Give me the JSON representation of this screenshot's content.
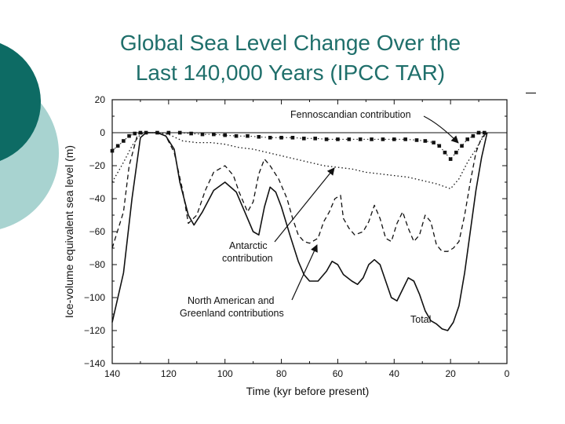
{
  "slide": {
    "title_line1": "Global Sea Level Change Over the",
    "title_line2": "Last 140,000 Years (IPCC TAR)",
    "colors": {
      "title": "#1f6f6b",
      "circle_dark": "#0d6b64",
      "circle_light": "#a8d3d0"
    }
  },
  "chart_data": {
    "type": "line",
    "xlabel": "Time (kyr before present)",
    "ylabel": "Ice-volume equivalent sea level (m)",
    "xlim": [
      140,
      0
    ],
    "ylim": [
      -140,
      20
    ],
    "x_ticks": [
      "140",
      "120",
      "100",
      "80",
      "60",
      "40",
      "20",
      "0"
    ],
    "y_ticks": [
      "20",
      "0",
      "−20",
      "−40",
      "−60",
      "−80",
      "−100",
      "−120",
      "−140"
    ],
    "annotations": {
      "fennoscandian": "Fennoscandian  contribution",
      "antarctic_1": "Antarctic",
      "antarctic_2": "contribution",
      "na_1": "North  American and",
      "na_2": "Greenland  contributions",
      "total": "Total"
    },
    "series": [
      {
        "style": "solid",
        "x": [
          140,
          136,
          133,
          130,
          128,
          124,
          121,
          118,
          116,
          113,
          111,
          108,
          104,
          100,
          96,
          93,
          90,
          88,
          86,
          84,
          82,
          80,
          77,
          74,
          72,
          70,
          67,
          64,
          62,
          60,
          58,
          55,
          53,
          51,
          49,
          47,
          45,
          43,
          41,
          39,
          37,
          35,
          33,
          31,
          29,
          27,
          25,
          23,
          21,
          19,
          17,
          15,
          13,
          11,
          9,
          7
        ],
        "y": [
          -115,
          -85,
          -40,
          -3,
          0,
          0,
          -2,
          -10,
          -30,
          -50,
          -56,
          -48,
          -35,
          -30,
          -36,
          -48,
          -60,
          -62,
          -45,
          -33,
          -36,
          -45,
          -62,
          -78,
          -86,
          -90,
          -90,
          -84,
          -78,
          -80,
          -86,
          -90,
          -92,
          -88,
          -80,
          -77,
          -80,
          -90,
          -100,
          -102,
          -95,
          -88,
          -90,
          -98,
          -108,
          -114,
          -116,
          -119,
          -120,
          -115,
          -105,
          -85,
          -60,
          -35,
          -15,
          0
        ]
      },
      {
        "style": "dashed",
        "x": [
          140,
          136,
          134,
          131,
          128,
          124,
          121,
          118,
          115,
          113,
          110,
          107,
          104,
          100,
          97,
          95,
          92,
          90,
          88,
          86,
          84,
          81,
          78,
          76,
          74,
          72,
          70,
          67,
          65,
          63,
          61,
          59,
          58,
          56,
          54,
          51,
          49,
          47,
          45,
          43,
          41,
          39,
          37,
          35,
          33,
          31,
          29,
          27,
          25,
          23,
          21,
          19,
          17,
          15,
          13,
          11,
          9,
          7
        ],
        "y": [
          -70,
          -48,
          -20,
          -1,
          0,
          0,
          -2,
          -12,
          -35,
          -55,
          -50,
          -35,
          -24,
          -20,
          -26,
          -36,
          -48,
          -42,
          -25,
          -16,
          -20,
          -28,
          -40,
          -52,
          -62,
          -66,
          -67,
          -64,
          -54,
          -48,
          -40,
          -38,
          -52,
          -58,
          -62,
          -60,
          -54,
          -44,
          -52,
          -64,
          -66,
          -55,
          -48,
          -58,
          -66,
          -62,
          -50,
          -54,
          -68,
          -72,
          -72,
          -70,
          -66,
          -50,
          -30,
          -12,
          -3,
          0
        ]
      },
      {
        "style": "dotted",
        "x": [
          140,
          136,
          133,
          130,
          128,
          124,
          120,
          115,
          110,
          105,
          100,
          95,
          90,
          85,
          80,
          75,
          70,
          65,
          60,
          55,
          50,
          45,
          40,
          35,
          30,
          25,
          20,
          17,
          14,
          11,
          9,
          7
        ],
        "y": [
          -30,
          -18,
          -8,
          -1,
          0,
          0,
          -1,
          -5,
          -6,
          -6,
          -7,
          -9,
          -10,
          -12,
          -14,
          -16,
          -18,
          -20,
          -21,
          -22,
          -24,
          -25,
          -26,
          -27,
          -29,
          -31,
          -34,
          -28,
          -18,
          -10,
          -4,
          0
        ]
      },
      {
        "style": "square-markers",
        "x": [
          140,
          138,
          136,
          134,
          132,
          130,
          128,
          124,
          120,
          116,
          112,
          108,
          104,
          100,
          96,
          92,
          88,
          84,
          80,
          76,
          72,
          68,
          64,
          60,
          56,
          52,
          48,
          44,
          40,
          36,
          32,
          29,
          26,
          24,
          22,
          20,
          18,
          16,
          14,
          12,
          10,
          8
        ],
        "y": [
          -11,
          -8,
          -5,
          -2,
          -0.5,
          0,
          0,
          0,
          0,
          0,
          -0.5,
          -1,
          -1,
          -1.5,
          -2,
          -2,
          -2.5,
          -3,
          -3,
          -3,
          -3.5,
          -3.5,
          -4,
          -4,
          -4,
          -4,
          -4,
          -4,
          -4,
          -4,
          -4.5,
          -5,
          -6,
          -8,
          -12,
          -16,
          -12,
          -8,
          -4,
          -2,
          0,
          0
        ]
      }
    ]
  }
}
